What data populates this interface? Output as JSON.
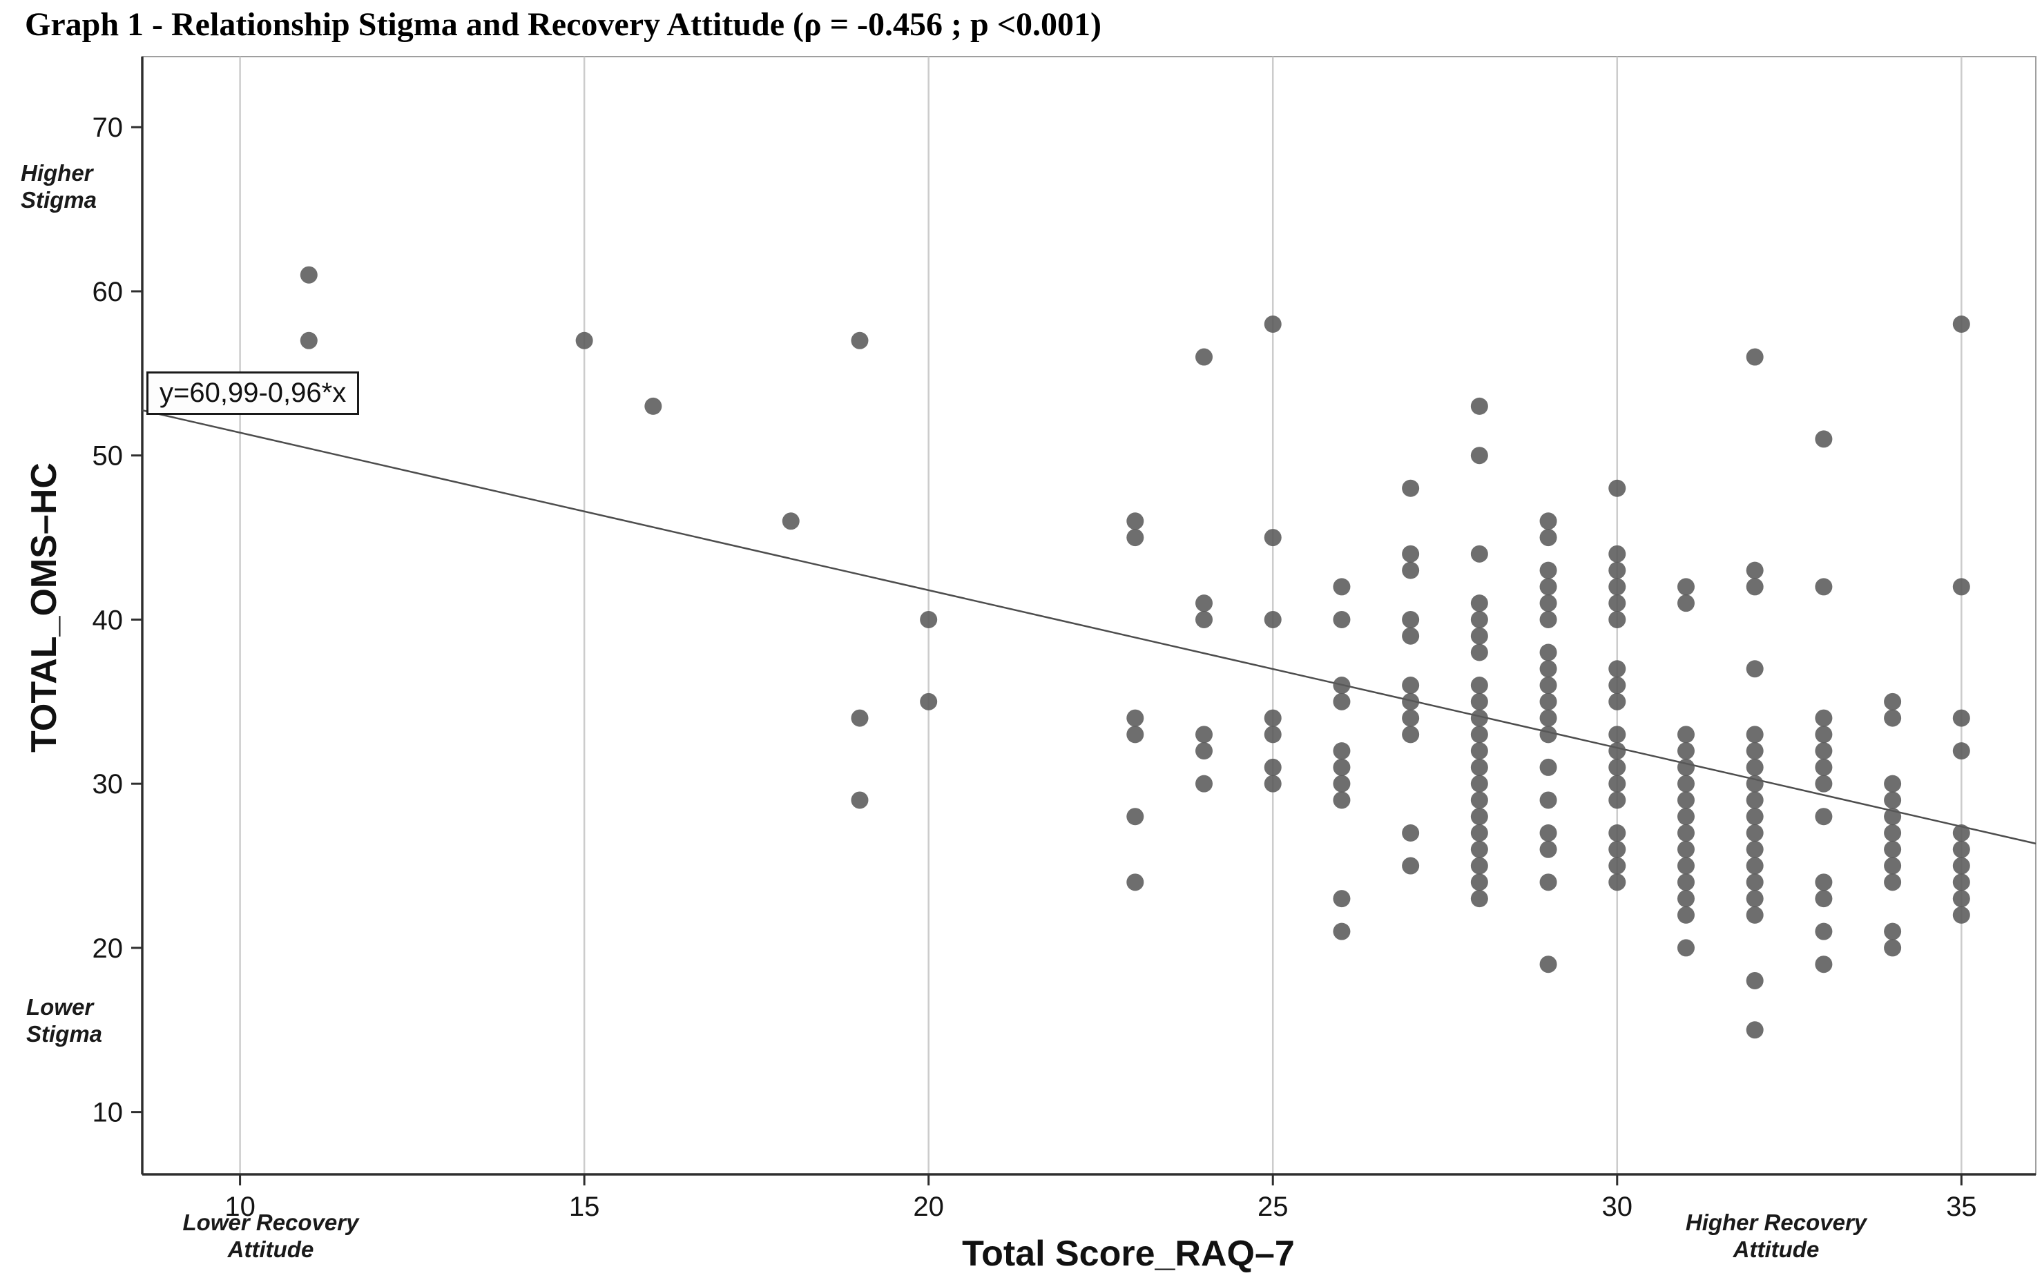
{
  "title": "Graph 1 - Relationship Stigma and Recovery Attitude (ρ = -0.456 ; p <0.001)",
  "equation_label": "y=60,99-0,96*x",
  "annotations": {
    "higher_stigma": [
      "Higher",
      "Stigma"
    ],
    "lower_stigma": [
      "Lower",
      "Stigma"
    ],
    "lower_recovery": [
      "Lower Recovery",
      "Attitude"
    ],
    "higher_recovery": [
      "Higher Recovery",
      "Attitude"
    ]
  },
  "chart_data": {
    "type": "scatter",
    "title": "Graph 1 - Relationship Stigma and Recovery Attitude (ρ = -0.456 ; p <0.001)",
    "xlabel": "Total Score_RAQ–7",
    "ylabel": "TOTAL_OMS–HC",
    "x_ticks": [
      10,
      15,
      20,
      25,
      30,
      35
    ],
    "y_ticks": [
      10,
      20,
      30,
      40,
      50,
      60,
      70
    ],
    "x_range": [
      8.58,
      36.08
    ],
    "y_range": [
      6.2,
      74.3
    ],
    "grid": "vertical-only",
    "legend": "none",
    "point_color": "#5a5a5a",
    "grid_color": "#cccccc",
    "axis_color": "#2e2e2e",
    "frame_color": "#9f9f9f",
    "correlation": {
      "rho": -0.456,
      "p": "<0.001"
    },
    "fit_line": {
      "label": "y=60,99-0,96*x",
      "intercept": 60.99,
      "slope": -0.96,
      "color": "#4d4d4d"
    },
    "points": [
      [
        11,
        61
      ],
      [
        11,
        57
      ],
      [
        15,
        57
      ],
      [
        16,
        53
      ],
      [
        18,
        46
      ],
      [
        19,
        57
      ],
      [
        19,
        34
      ],
      [
        19,
        29
      ],
      [
        20,
        40
      ],
      [
        20,
        35
      ],
      [
        23,
        46
      ],
      [
        23,
        45
      ],
      [
        23,
        34
      ],
      [
        23,
        33
      ],
      [
        23,
        28
      ],
      [
        23,
        24
      ],
      [
        24,
        56
      ],
      [
        24,
        41
      ],
      [
        24,
        40
      ],
      [
        24,
        33
      ],
      [
        24,
        32
      ],
      [
        24,
        30
      ],
      [
        25,
        58
      ],
      [
        25,
        45
      ],
      [
        25,
        40
      ],
      [
        25,
        34
      ],
      [
        25,
        33
      ],
      [
        25,
        31
      ],
      [
        25,
        30
      ],
      [
        26,
        42
      ],
      [
        26,
        40
      ],
      [
        26,
        36
      ],
      [
        26,
        35
      ],
      [
        26,
        32
      ],
      [
        26,
        31
      ],
      [
        26,
        30
      ],
      [
        26,
        29
      ],
      [
        26,
        23
      ],
      [
        26,
        21
      ],
      [
        27,
        48
      ],
      [
        27,
        44
      ],
      [
        27,
        43
      ],
      [
        27,
        40
      ],
      [
        27,
        39
      ],
      [
        27,
        36
      ],
      [
        27,
        35
      ],
      [
        27,
        34
      ],
      [
        27,
        33
      ],
      [
        27,
        27
      ],
      [
        27,
        25
      ],
      [
        28,
        53
      ],
      [
        28,
        50
      ],
      [
        28,
        44
      ],
      [
        28,
        41
      ],
      [
        28,
        40
      ],
      [
        28,
        39
      ],
      [
        28,
        38
      ],
      [
        28,
        36
      ],
      [
        28,
        35
      ],
      [
        28,
        34
      ],
      [
        28,
        33
      ],
      [
        28,
        32
      ],
      [
        28,
        31
      ],
      [
        28,
        30
      ],
      [
        28,
        29
      ],
      [
        28,
        28
      ],
      [
        28,
        27
      ],
      [
        28,
        26
      ],
      [
        28,
        25
      ],
      [
        28,
        24
      ],
      [
        28,
        23
      ],
      [
        29,
        46
      ],
      [
        29,
        45
      ],
      [
        29,
        43
      ],
      [
        29,
        42
      ],
      [
        29,
        41
      ],
      [
        29,
        40
      ],
      [
        29,
        38
      ],
      [
        29,
        37
      ],
      [
        29,
        36
      ],
      [
        29,
        35
      ],
      [
        29,
        34
      ],
      [
        29,
        33
      ],
      [
        29,
        31
      ],
      [
        29,
        29
      ],
      [
        29,
        27
      ],
      [
        29,
        26
      ],
      [
        29,
        24
      ],
      [
        29,
        19
      ],
      [
        30,
        48
      ],
      [
        30,
        44
      ],
      [
        30,
        43
      ],
      [
        30,
        42
      ],
      [
        30,
        41
      ],
      [
        30,
        40
      ],
      [
        30,
        37
      ],
      [
        30,
        36
      ],
      [
        30,
        35
      ],
      [
        30,
        33
      ],
      [
        30,
        32
      ],
      [
        30,
        31
      ],
      [
        30,
        30
      ],
      [
        30,
        29
      ],
      [
        30,
        27
      ],
      [
        30,
        26
      ],
      [
        30,
        25
      ],
      [
        30,
        24
      ],
      [
        31,
        42
      ],
      [
        31,
        41
      ],
      [
        31,
        33
      ],
      [
        31,
        32
      ],
      [
        31,
        31
      ],
      [
        31,
        30
      ],
      [
        31,
        29
      ],
      [
        31,
        28
      ],
      [
        31,
        27
      ],
      [
        31,
        26
      ],
      [
        31,
        25
      ],
      [
        31,
        24
      ],
      [
        31,
        23
      ],
      [
        31,
        22
      ],
      [
        31,
        20
      ],
      [
        32,
        56
      ],
      [
        32,
        43
      ],
      [
        32,
        42
      ],
      [
        32,
        37
      ],
      [
        32,
        33
      ],
      [
        32,
        32
      ],
      [
        32,
        31
      ],
      [
        32,
        30
      ],
      [
        32,
        29
      ],
      [
        32,
        28
      ],
      [
        32,
        27
      ],
      [
        32,
        26
      ],
      [
        32,
        25
      ],
      [
        32,
        24
      ],
      [
        32,
        23
      ],
      [
        32,
        22
      ],
      [
        32,
        18
      ],
      [
        32,
        15
      ],
      [
        33,
        51
      ],
      [
        33,
        42
      ],
      [
        33,
        34
      ],
      [
        33,
        33
      ],
      [
        33,
        32
      ],
      [
        33,
        31
      ],
      [
        33,
        30
      ],
      [
        33,
        28
      ],
      [
        33,
        24
      ],
      [
        33,
        23
      ],
      [
        33,
        21
      ],
      [
        33,
        19
      ],
      [
        34,
        35
      ],
      [
        34,
        34
      ],
      [
        34,
        30
      ],
      [
        34,
        29
      ],
      [
        34,
        28
      ],
      [
        34,
        27
      ],
      [
        34,
        26
      ],
      [
        34,
        25
      ],
      [
        34,
        24
      ],
      [
        34,
        21
      ],
      [
        34,
        20
      ],
      [
        35,
        58
      ],
      [
        35,
        42
      ],
      [
        35,
        34
      ],
      [
        35,
        32
      ],
      [
        35,
        27
      ],
      [
        35,
        26
      ],
      [
        35,
        25
      ],
      [
        35,
        24
      ],
      [
        35,
        23
      ],
      [
        35,
        22
      ]
    ]
  }
}
